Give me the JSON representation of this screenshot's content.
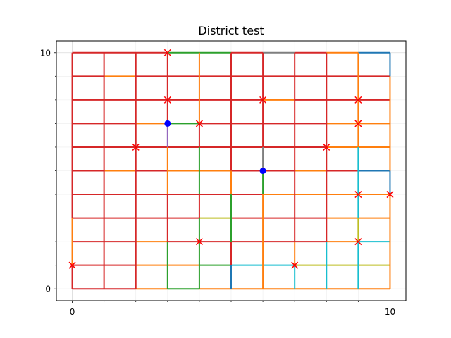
{
  "chart_data": {
    "type": "line",
    "title": "District test",
    "xlabel": "",
    "ylabel": "",
    "xlim": [
      -0.5,
      10.5
    ],
    "ylim": [
      -0.5,
      10.5
    ],
    "x_ticks": [
      0,
      10
    ],
    "y_ticks": [
      0,
      10
    ],
    "minor_grid_step": 1,
    "grid": true,
    "grid_style": "major and minor, light gray",
    "colors": {
      "red": "#d62728",
      "orange": "#ff7f0e",
      "green": "#2ca02c",
      "blue": "#1f77b4",
      "cyan": "#17becf",
      "olive": "#bcbd22",
      "gray": "#7f7f7f",
      "purple": "#9467bd",
      "marker_x": "#ff0000",
      "marker_dot": "#0000ff"
    },
    "horizontal_segments": [
      {
        "y": 10,
        "x0": 0,
        "x1": 3,
        "color": "red"
      },
      {
        "y": 10,
        "x0": 3,
        "x1": 5,
        "color": "green"
      },
      {
        "y": 10,
        "x0": 5,
        "x1": 6,
        "color": "red"
      },
      {
        "y": 10,
        "x0": 6,
        "x1": 7,
        "color": "gray"
      },
      {
        "y": 10,
        "x0": 7,
        "x1": 8,
        "color": "red"
      },
      {
        "y": 10,
        "x0": 8,
        "x1": 9,
        "color": "orange"
      },
      {
        "y": 10,
        "x0": 9,
        "x1": 10,
        "color": "blue"
      },
      {
        "y": 9,
        "x0": 0,
        "x1": 1,
        "color": "red"
      },
      {
        "y": 9,
        "x0": 1,
        "x1": 2,
        "color": "orange"
      },
      {
        "y": 9,
        "x0": 2,
        "x1": 10,
        "color": "red"
      },
      {
        "y": 8,
        "x0": 0,
        "x1": 6,
        "color": "red"
      },
      {
        "y": 8,
        "x0": 6,
        "x1": 7,
        "color": "orange"
      },
      {
        "y": 8,
        "x0": 7,
        "x1": 10,
        "color": "red"
      },
      {
        "y": 7,
        "x0": 0,
        "x1": 2,
        "color": "red"
      },
      {
        "y": 7,
        "x0": 2,
        "x1": 3,
        "color": "orange"
      },
      {
        "y": 7,
        "x0": 3,
        "x1": 4,
        "color": "green"
      },
      {
        "y": 7,
        "x0": 4,
        "x1": 8,
        "color": "red"
      },
      {
        "y": 7,
        "x0": 8,
        "x1": 10,
        "color": "orange"
      },
      {
        "y": 6,
        "x0": 0,
        "x1": 8,
        "color": "red"
      },
      {
        "y": 6,
        "x0": 8,
        "x1": 10,
        "color": "orange"
      },
      {
        "y": 5,
        "x0": 0,
        "x1": 1,
        "color": "red"
      },
      {
        "y": 5,
        "x0": 1,
        "x1": 2,
        "color": "orange"
      },
      {
        "y": 5,
        "x0": 2,
        "x1": 3,
        "color": "red"
      },
      {
        "y": 5,
        "x0": 3,
        "x1": 5,
        "color": "orange"
      },
      {
        "y": 5,
        "x0": 5,
        "x1": 7,
        "color": "red"
      },
      {
        "y": 5,
        "x0": 7,
        "x1": 8,
        "color": "orange"
      },
      {
        "y": 5,
        "x0": 8,
        "x1": 9,
        "color": "red"
      },
      {
        "y": 5,
        "x0": 9,
        "x1": 10,
        "color": "blue"
      },
      {
        "y": 4,
        "x0": 0,
        "x1": 6,
        "color": "red"
      },
      {
        "y": 4,
        "x0": 6,
        "x1": 10,
        "color": "orange"
      },
      {
        "y": 3,
        "x0": 0,
        "x1": 4,
        "color": "red"
      },
      {
        "y": 3,
        "x0": 4,
        "x1": 5,
        "color": "olive"
      },
      {
        "y": 3,
        "x0": 5,
        "x1": 8,
        "color": "red"
      },
      {
        "y": 3,
        "x0": 8,
        "x1": 10,
        "color": "orange"
      },
      {
        "y": 2,
        "x0": 0,
        "x1": 2,
        "color": "red"
      },
      {
        "y": 2,
        "x0": 2,
        "x1": 3,
        "color": "orange"
      },
      {
        "y": 2,
        "x0": 3,
        "x1": 8,
        "color": "red"
      },
      {
        "y": 2,
        "x0": 8,
        "x1": 9,
        "color": "orange"
      },
      {
        "y": 2,
        "x0": 9,
        "x1": 10,
        "color": "cyan"
      },
      {
        "y": 1,
        "x0": 0,
        "x1": 2,
        "color": "red"
      },
      {
        "y": 1,
        "x0": 2,
        "x1": 4,
        "color": "orange"
      },
      {
        "y": 1,
        "x0": 4,
        "x1": 5,
        "color": "green"
      },
      {
        "y": 1,
        "x0": 5,
        "x1": 7,
        "color": "cyan"
      },
      {
        "y": 1,
        "x0": 7,
        "x1": 9,
        "color": "olive"
      },
      {
        "y": 1,
        "x0": 9,
        "x1": 10,
        "color": "olive"
      },
      {
        "y": 0,
        "x0": 0,
        "x1": 2,
        "color": "red"
      },
      {
        "y": 0,
        "x0": 2,
        "x1": 3,
        "color": "orange"
      },
      {
        "y": 0,
        "x0": 3,
        "x1": 4,
        "color": "green"
      },
      {
        "y": 0,
        "x0": 4,
        "x1": 10,
        "color": "orange"
      }
    ],
    "vertical_segments": [
      {
        "x": 0,
        "y0": 0,
        "y1": 1,
        "color": "red"
      },
      {
        "x": 0,
        "y0": 1,
        "y1": 3,
        "color": "orange"
      },
      {
        "x": 0,
        "y0": 3,
        "y1": 10,
        "color": "red"
      },
      {
        "x": 1,
        "y0": 0,
        "y1": 10,
        "color": "red"
      },
      {
        "x": 2,
        "y0": 0,
        "y1": 10,
        "color": "red"
      },
      {
        "x": 3,
        "y0": 0,
        "y1": 2,
        "color": "green"
      },
      {
        "x": 3,
        "y0": 2,
        "y1": 4,
        "color": "red"
      },
      {
        "x": 3,
        "y0": 4,
        "y1": 6,
        "color": "orange"
      },
      {
        "x": 3,
        "y0": 6,
        "y1": 7,
        "color": "purple"
      },
      {
        "x": 3,
        "y0": 7,
        "y1": 10,
        "color": "red"
      },
      {
        "x": 4,
        "y0": 0,
        "y1": 2,
        "color": "green"
      },
      {
        "x": 4,
        "y0": 2,
        "y1": 3,
        "color": "green"
      },
      {
        "x": 4,
        "y0": 3,
        "y1": 4,
        "color": "red"
      },
      {
        "x": 4,
        "y0": 4,
        "y1": 6,
        "color": "green"
      },
      {
        "x": 4,
        "y0": 6,
        "y1": 7,
        "color": "red"
      },
      {
        "x": 4,
        "y0": 7,
        "y1": 10,
        "color": "orange"
      },
      {
        "x": 5,
        "y0": 0,
        "y1": 1,
        "color": "blue"
      },
      {
        "x": 5,
        "y0": 1,
        "y1": 2,
        "color": "red"
      },
      {
        "x": 5,
        "y0": 2,
        "y1": 4,
        "color": "green"
      },
      {
        "x": 5,
        "y0": 4,
        "y1": 5,
        "color": "orange"
      },
      {
        "x": 5,
        "y0": 5,
        "y1": 10,
        "color": "red"
      },
      {
        "x": 6,
        "y0": 0,
        "y1": 4,
        "color": "orange"
      },
      {
        "x": 6,
        "y0": 4,
        "y1": 5,
        "color": "green"
      },
      {
        "x": 6,
        "y0": 5,
        "y1": 6,
        "color": "gray"
      },
      {
        "x": 6,
        "y0": 6,
        "y1": 10,
        "color": "red"
      },
      {
        "x": 7,
        "y0": 0,
        "y1": 1,
        "color": "cyan"
      },
      {
        "x": 7,
        "y0": 1,
        "y1": 2,
        "color": "orange"
      },
      {
        "x": 7,
        "y0": 2,
        "y1": 10,
        "color": "red"
      },
      {
        "x": 8,
        "y0": 0,
        "y1": 2,
        "color": "cyan"
      },
      {
        "x": 8,
        "y0": 2,
        "y1": 10,
        "color": "red"
      },
      {
        "x": 9,
        "y0": 0,
        "y1": 2,
        "color": "cyan"
      },
      {
        "x": 9,
        "y0": 2,
        "y1": 3,
        "color": "olive"
      },
      {
        "x": 9,
        "y0": 3,
        "y1": 4,
        "color": "cyan"
      },
      {
        "x": 9,
        "y0": 4,
        "y1": 6,
        "color": "cyan"
      },
      {
        "x": 9,
        "y0": 6,
        "y1": 10,
        "color": "orange"
      },
      {
        "x": 10,
        "y0": 0,
        "y1": 4,
        "color": "orange"
      },
      {
        "x": 10,
        "y0": 4,
        "y1": 5,
        "color": "blue"
      },
      {
        "x": 10,
        "y0": 5,
        "y1": 9,
        "color": "orange"
      },
      {
        "x": 10,
        "y0": 9,
        "y1": 10,
        "color": "blue"
      }
    ],
    "x_markers": [
      [
        3,
        10
      ],
      [
        3,
        8
      ],
      [
        6,
        8
      ],
      [
        9,
        8
      ],
      [
        4,
        7
      ],
      [
        9,
        7
      ],
      [
        2,
        6
      ],
      [
        8,
        6
      ],
      [
        9,
        4
      ],
      [
        10,
        4
      ],
      [
        4,
        2
      ],
      [
        9,
        2
      ],
      [
        0,
        1
      ],
      [
        7,
        1
      ]
    ],
    "dot_markers": [
      [
        3,
        7
      ],
      [
        6,
        5
      ]
    ]
  }
}
